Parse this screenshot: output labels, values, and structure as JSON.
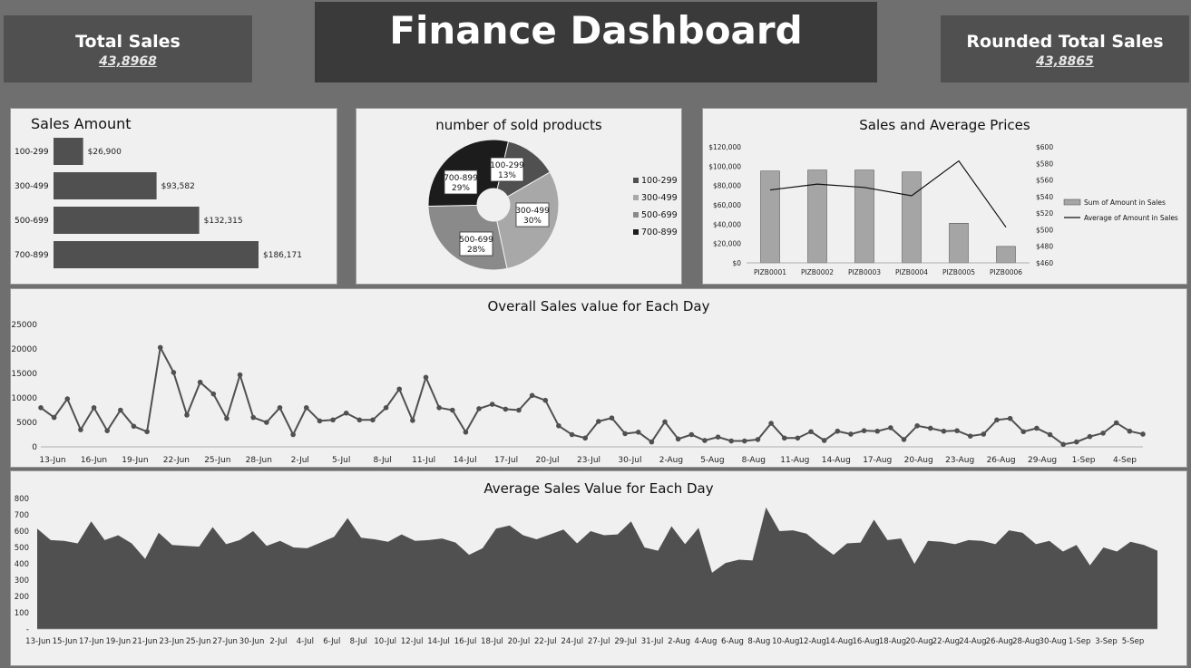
{
  "header": {
    "title": "Finance Dashboard"
  },
  "kpi_left": {
    "label": "Total Sales",
    "value": "43,8968"
  },
  "kpi_right": {
    "label": "Rounded Total Sales",
    "value": "43,8865"
  },
  "colors": {
    "dark": "#505050",
    "mid": "#8a8a8a",
    "light": "#a8a8a8",
    "black": "#1c1c1c",
    "bar": "#a5a5a5"
  },
  "chart_data": [
    {
      "type": "bar",
      "title": "Sales Amount",
      "orientation": "horizontal",
      "categories": [
        "100-299",
        "300-499",
        "500-699",
        "700-899"
      ],
      "values": [
        26900,
        93582,
        132315,
        186171
      ],
      "value_labels": [
        "$26,900",
        "$93,582",
        "$132,315",
        "$186,171"
      ]
    },
    {
      "type": "pie",
      "title": "number of sold products",
      "donut": true,
      "categories": [
        "100-299",
        "300-499",
        "500-699",
        "700-899"
      ],
      "values": [
        13,
        30,
        28,
        29
      ],
      "value_labels": [
        "13%",
        "30%",
        "28%",
        "29%"
      ],
      "legend": "right"
    },
    {
      "type": "bar",
      "title": "Sales  and Average Prices",
      "categories": [
        "PIZB0001",
        "PIZB0002",
        "PIZB0003",
        "PIZB0004",
        "PIZB0005",
        "PIZB0006"
      ],
      "series": [
        {
          "name": "Sum of Amount in Sales",
          "type": "bar",
          "axis": "left",
          "values": [
            95000,
            96000,
            96000,
            94000,
            41000,
            17000
          ]
        },
        {
          "name": "Average of Amount in Sales",
          "type": "line",
          "axis": "right",
          "values": [
            548,
            555,
            551,
            541,
            583,
            503
          ]
        }
      ],
      "ylim": [
        0,
        120000
      ],
      "y_ticks": [
        "$0",
        "$20,000",
        "$40,000",
        "$60,000",
        "$80,000",
        "$100,000",
        "$120,000"
      ],
      "y2lim": [
        460,
        600
      ],
      "y2_ticks": [
        "$460",
        "$480",
        "$500",
        "$520",
        "$540",
        "$560",
        "$580",
        "$600"
      ],
      "legend": "right"
    },
    {
      "type": "line",
      "title": "Overall Sales value for Each Day",
      "ylim": [
        0,
        25000
      ],
      "y_ticks": [
        "0",
        "5000",
        "10000",
        "15000",
        "20000",
        "25000"
      ],
      "x_tick_labels": [
        "13-Jun",
        "16-Jun",
        "19-Jun",
        "22-Jun",
        "25-Jun",
        "28-Jun",
        "2-Jul",
        "5-Jul",
        "8-Jul",
        "11-Jul",
        "14-Jul",
        "17-Jul",
        "20-Jul",
        "23-Jul",
        "30-Jul",
        "2-Aug",
        "5-Aug",
        "8-Aug",
        "11-Aug",
        "14-Aug",
        "17-Aug",
        "20-Aug",
        "23-Aug",
        "26-Aug",
        "29-Aug",
        "1-Sep",
        "4-Sep"
      ],
      "values": [
        8000,
        6000,
        9800,
        3500,
        8000,
        3300,
        7500,
        4200,
        3100,
        20300,
        15200,
        6500,
        13200,
        10800,
        5800,
        14700,
        6000,
        5000,
        8000,
        2500,
        8000,
        5300,
        5500,
        6900,
        5500,
        5500,
        8000,
        11800,
        5400,
        14200,
        8000,
        7500,
        3000,
        7800,
        8700,
        7700,
        7500,
        10500,
        9500,
        4300,
        2500,
        1800,
        5200,
        5900,
        2700,
        3000,
        1000,
        5100,
        1600,
        2500,
        1300,
        2000,
        1200,
        1200,
        1500,
        4800,
        1800,
        1800,
        3100,
        1300,
        3200,
        2600,
        3300,
        3200,
        3900,
        1500,
        4300,
        3800,
        3200,
        3300,
        2200,
        2600,
        5500,
        5800,
        3100,
        3800,
        2500,
        500,
        1000,
        2100,
        2800,
        4900,
        3200,
        2600
      ]
    },
    {
      "type": "area",
      "title": "Average Sales Value for Each Day",
      "ylim": [
        0,
        800
      ],
      "y_ticks": [
        "-",
        "100",
        "200",
        "300",
        "400",
        "500",
        "600",
        "700",
        "800"
      ],
      "x_tick_labels": [
        "13-Jun",
        "15-Jun",
        "17-Jun",
        "19-Jun",
        "21-Jun",
        "23-Jun",
        "25-Jun",
        "27-Jun",
        "30-Jun",
        "2-Jul",
        "4-Jul",
        "6-Jul",
        "8-Jul",
        "10-Jul",
        "12-Jul",
        "14-Jul",
        "16-Jul",
        "18-Jul",
        "20-Jul",
        "22-Jul",
        "24-Jul",
        "27-Jul",
        "29-Jul",
        "31-Jul",
        "2-Aug",
        "4-Aug",
        "6-Aug",
        "8-Aug",
        "10-Aug",
        "12-Aug",
        "14-Aug",
        "16-Aug",
        "18-Aug",
        "20-Aug",
        "22-Aug",
        "24-Aug",
        "26-Aug",
        "28-Aug",
        "30-Aug",
        "1-Sep",
        "3-Sep",
        "5-Sep"
      ],
      "values": [
        615,
        545,
        540,
        525,
        660,
        545,
        575,
        525,
        430,
        590,
        515,
        510,
        505,
        625,
        520,
        545,
        600,
        510,
        540,
        500,
        495,
        530,
        565,
        680,
        560,
        550,
        535,
        580,
        540,
        545,
        555,
        530,
        455,
        495,
        615,
        635,
        575,
        550,
        580,
        610,
        525,
        600,
        575,
        580,
        660,
        500,
        480,
        630,
        520,
        620,
        345,
        405,
        425,
        420,
        745,
        600,
        605,
        585,
        515,
        455,
        525,
        530,
        670,
        545,
        555,
        400,
        540,
        535,
        520,
        545,
        540,
        520,
        605,
        590,
        520,
        540,
        475,
        515,
        390,
        500,
        475,
        535,
        515,
        480
      ]
    }
  ]
}
